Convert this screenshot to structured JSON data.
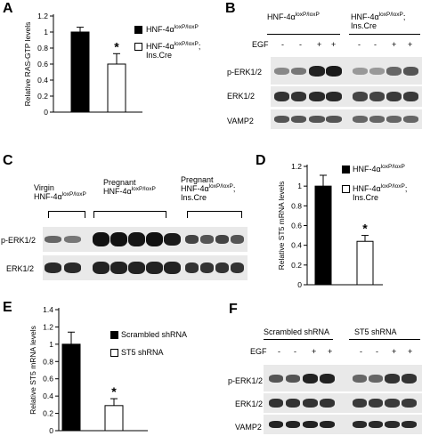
{
  "panels": {
    "A": {
      "label": "A",
      "chart_data": {
        "type": "bar",
        "categories": [
          "HNF-4αloxP/loxP",
          "HNF-4αloxP/loxP;Ins.Cre"
        ],
        "values": [
          1.0,
          0.6
        ],
        "errors": [
          0.06,
          0.13
        ],
        "ylabel": "Relative RAS-GTP levels",
        "ylim": [
          0,
          1.2
        ],
        "yticks": [
          "0",
          "0.2",
          "0.4",
          "0.6",
          "0.8",
          "1",
          "1.2"
        ],
        "significance": "*",
        "colors": [
          "#000000",
          "#ffffff"
        ]
      },
      "legend": [
        {
          "name": "HNF-4α",
          "sup": "loxP/loxP",
          "suffix": ""
        },
        {
          "name": "HNF-4α",
          "sup": "loxP/loxP",
          "suffix": ";",
          "line2": "Ins.Cre"
        }
      ]
    },
    "B": {
      "label": "B",
      "groups": [
        {
          "name": "HNF-4α",
          "sup": "loxP/loxP",
          "suffix": ""
        },
        {
          "name": "HNF-4α",
          "sup": "loxP/loxP",
          "suffix": ";",
          "line2": "Ins.Cre"
        }
      ],
      "treatment_label": "EGF",
      "treatment_marks": [
        "-",
        "-",
        "+",
        "+",
        "-",
        "-",
        "+",
        "+"
      ],
      "rows": [
        "p-ERK1/2",
        "ERK1/2",
        "VAMP2"
      ]
    },
    "C": {
      "label": "C",
      "groups": [
        {
          "line1": "Virgin",
          "name": "HNF-4α",
          "sup": "loxP/loxP",
          "suffix": ""
        },
        {
          "line1": "Pregnant",
          "name": "HNF-4α",
          "sup": "loxP/loxP",
          "suffix": ""
        },
        {
          "line1": "Pregnant",
          "name": "HNF-4α",
          "sup": "loxP/loxP",
          "suffix": ";",
          "line3": "Ins.Cre"
        }
      ],
      "rows": [
        "p-ERK1/2",
        "ERK1/2"
      ]
    },
    "D": {
      "label": "D",
      "chart_data": {
        "type": "bar",
        "categories": [
          "HNF-4αloxP/loxP",
          "HNF-4αloxP/loxP;Ins.Cre"
        ],
        "values": [
          1.0,
          0.44
        ],
        "errors": [
          0.11,
          0.06
        ],
        "ylabel": "Relative ST5 mRNA levels",
        "ylim": [
          0,
          1.2
        ],
        "yticks": [
          "0",
          "0.2",
          "0.4",
          "0.6",
          "0.8",
          "1",
          "1.2"
        ],
        "significance": "*",
        "colors": [
          "#000000",
          "#ffffff"
        ]
      },
      "legend": [
        {
          "name": "HNF-4α",
          "sup": "loxP/loxP",
          "suffix": ""
        },
        {
          "name": "HNF-4α",
          "sup": "loxP/loxP",
          "suffix": ";",
          "line2": "Ins.Cre"
        }
      ]
    },
    "E": {
      "label": "E",
      "chart_data": {
        "type": "bar",
        "categories": [
          "Scrambled shRNA",
          "ST5 shRNA"
        ],
        "values": [
          1.0,
          0.29
        ],
        "errors": [
          0.14,
          0.08
        ],
        "ylabel": "Relative ST5 mRNA levels",
        "ylim": [
          0,
          1.4
        ],
        "yticks": [
          "0",
          "0.2",
          "0.4",
          "0.6",
          "0.8",
          "1",
          "1.2",
          "1.4"
        ],
        "significance": "*",
        "colors": [
          "#000000",
          "#ffffff"
        ]
      },
      "legend": [
        {
          "name": "Scrambled shRNA"
        },
        {
          "name": "ST5 shRNA"
        }
      ]
    },
    "F": {
      "label": "F",
      "groups": [
        {
          "name": "Scrambled shRNA"
        },
        {
          "name": "ST5 shRNA"
        }
      ],
      "treatment_label": "EGF",
      "treatment_marks": [
        "-",
        "-",
        "+",
        "+",
        "-",
        "-",
        "+",
        "+"
      ],
      "rows": [
        "p-ERK1/2",
        "ERK1/2",
        "VAMP2"
      ]
    }
  }
}
